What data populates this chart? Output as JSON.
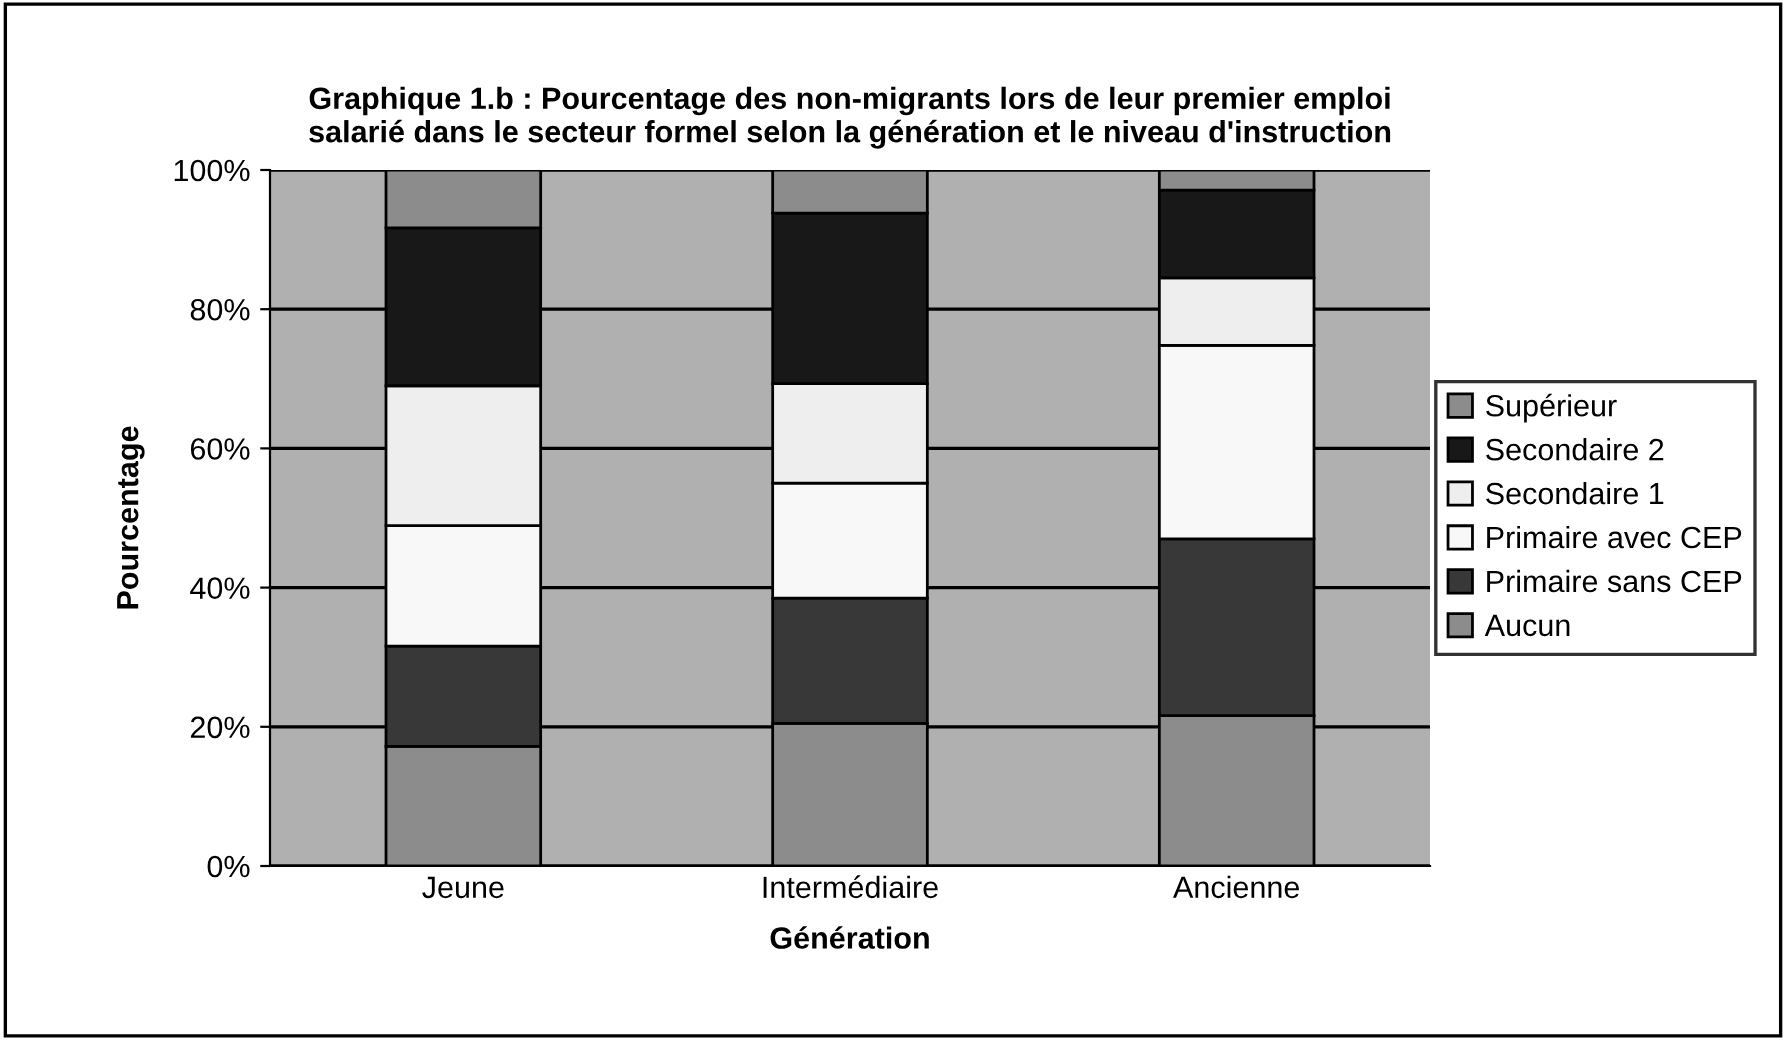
{
  "chart_data": {
    "type": "bar",
    "stacked": true,
    "title": "Graphique 1.b : Pourcentage des non-migrants lors de leur premier emploi\nsalarié dans le secteur formel selon la génération et le niveau d'instruction",
    "xlabel": "Génération",
    "ylabel": "Pourcentage",
    "categories": [
      "Jeune",
      "Intermédiaire",
      "Ancienne"
    ],
    "series": [
      {
        "name": "Aucun",
        "color": "#8c8c8c",
        "values": [
          17.2,
          20.5,
          21.6
        ]
      },
      {
        "name": "Primaire sans CEP",
        "color": "#383838",
        "values": [
          14.4,
          18.0,
          25.4
        ]
      },
      {
        "name": "Primaire avec CEP",
        "color": "#f8f8f8",
        "values": [
          17.3,
          16.5,
          27.8
        ]
      },
      {
        "name": "Secondaire 1",
        "color": "#eeeeee",
        "values": [
          20.1,
          14.3,
          9.7
        ]
      },
      {
        "name": "Secondaire 2",
        "color": "#181818",
        "values": [
          22.7,
          24.5,
          12.6
        ]
      },
      {
        "name": "Supérieur",
        "color": "#8c8c8c",
        "values": [
          8.3,
          6.2,
          2.9
        ]
      }
    ],
    "ylim": [
      0,
      100
    ],
    "yticks": [
      {
        "value": 0,
        "label": "0%"
      },
      {
        "value": 20,
        "label": "20%"
      },
      {
        "value": 40,
        "label": "40%"
      },
      {
        "value": 60,
        "label": "60%"
      },
      {
        "value": 80,
        "label": "80%"
      },
      {
        "value": 100,
        "label": "100%"
      }
    ],
    "grid": "y",
    "legend": "right"
  }
}
